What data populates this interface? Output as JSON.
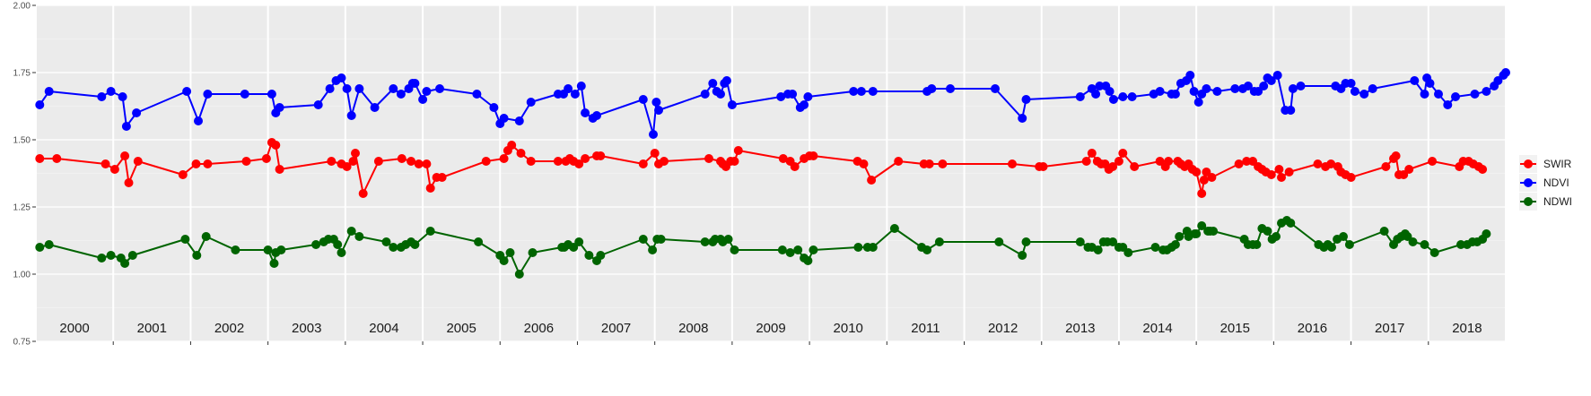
{
  "chart_data": {
    "type": "line",
    "ylim": [
      0.75,
      2.0
    ],
    "xlim": [
      2000.0,
      2019.0
    ],
    "y_ticks": [
      "0.75",
      "1.00",
      "1.25",
      "1.50",
      "1.75",
      "2.00"
    ],
    "year_labels": [
      "2000",
      "2001",
      "2002",
      "2003",
      "2004",
      "2005",
      "2006",
      "2007",
      "2008",
      "2009",
      "2010",
      "2011",
      "2012",
      "2013",
      "2014",
      "2015",
      "2016",
      "2017",
      "2018"
    ],
    "legend_position": "right",
    "background": "#ebebeb",
    "grid": true,
    "series": [
      {
        "name": "SWIR",
        "color": "#ff0000",
        "x": [
          2000.05,
          2000.27,
          2000.9,
          2001.02,
          2001.15,
          2001.2,
          2001.32,
          2001.9,
          2002.07,
          2002.22,
          2002.72,
          2002.98,
          2003.05,
          2003.1,
          2003.15,
          2003.82,
          2003.95,
          2004.02,
          2004.1,
          2004.13,
          2004.23,
          2004.43,
          2004.73,
          2004.85,
          2004.95,
          2005.05,
          2005.1,
          2005.18,
          2005.25,
          2005.82,
          2006.05,
          2006.1,
          2006.15,
          2006.27,
          2006.4,
          2006.75,
          2006.85,
          2006.9,
          2006.95,
          2007.02,
          2007.1,
          2007.25,
          2007.3,
          2007.85,
          2008.0,
          2008.05,
          2008.12,
          2008.7,
          2008.85,
          2008.88,
          2008.92,
          2008.98,
          2009.03,
          2009.08,
          2009.66,
          2009.75,
          2009.81,
          2009.93,
          2010.0,
          2010.05,
          2010.62,
          2010.7,
          2010.8,
          2011.15,
          2011.48,
          2011.55,
          2011.72,
          2012.62,
          2012.97,
          2013.02,
          2013.58,
          2013.65,
          2013.72,
          2013.77,
          2013.82,
          2013.87,
          2013.92,
          2014.0,
          2014.05,
          2014.2,
          2014.53,
          2014.6,
          2014.64,
          2014.76,
          2014.8,
          2014.85,
          2014.9,
          2014.95,
          2015.0,
          2015.07,
          2015.1,
          2015.13,
          2015.2,
          2015.55,
          2015.65,
          2015.73,
          2015.8,
          2015.85,
          2015.9,
          2015.97,
          2016.07,
          2016.1,
          2016.2,
          2016.57,
          2016.67,
          2016.74,
          2016.83,
          2016.87,
          2016.93,
          2017.0,
          2017.45,
          2017.55,
          2017.58,
          2017.62,
          2017.68,
          2017.75,
          2018.05,
          2018.4,
          2018.45,
          2018.52,
          2018.58,
          2018.65,
          2018.7
        ],
        "y": [
          1.43,
          1.43,
          1.41,
          1.39,
          1.44,
          1.34,
          1.42,
          1.37,
          1.41,
          1.41,
          1.42,
          1.43,
          1.49,
          1.48,
          1.39,
          1.42,
          1.41,
          1.4,
          1.42,
          1.45,
          1.3,
          1.42,
          1.43,
          1.42,
          1.41,
          1.41,
          1.32,
          1.36,
          1.36,
          1.42,
          1.43,
          1.46,
          1.48,
          1.45,
          1.42,
          1.42,
          1.42,
          1.43,
          1.42,
          1.41,
          1.43,
          1.44,
          1.44,
          1.41,
          1.45,
          1.41,
          1.42,
          1.43,
          1.42,
          1.41,
          1.4,
          1.42,
          1.42,
          1.46,
          1.43,
          1.42,
          1.4,
          1.43,
          1.44,
          1.44,
          1.42,
          1.41,
          1.35,
          1.42,
          1.41,
          1.41,
          1.41,
          1.41,
          1.4,
          1.4,
          1.42,
          1.45,
          1.42,
          1.41,
          1.41,
          1.39,
          1.4,
          1.42,
          1.45,
          1.4,
          1.42,
          1.4,
          1.42,
          1.42,
          1.41,
          1.4,
          1.41,
          1.39,
          1.38,
          1.3,
          1.35,
          1.38,
          1.36,
          1.41,
          1.42,
          1.42,
          1.4,
          1.39,
          1.38,
          1.37,
          1.39,
          1.36,
          1.38,
          1.41,
          1.4,
          1.41,
          1.4,
          1.38,
          1.37,
          1.36,
          1.4,
          1.43,
          1.44,
          1.37,
          1.37,
          1.39,
          1.42,
          1.4,
          1.42,
          1.42,
          1.41,
          1.4,
          1.39
        ]
      },
      {
        "name": "NDVI",
        "color": "#0000ff",
        "x": [
          2000.05,
          2000.17,
          2000.85,
          2000.97,
          2001.12,
          2001.17,
          2001.3,
          2001.95,
          2002.1,
          2002.22,
          2002.7,
          2003.05,
          2003.1,
          2003.15,
          2003.65,
          2003.8,
          2003.88,
          2003.95,
          2004.02,
          2004.08,
          2004.18,
          2004.38,
          2004.62,
          2004.72,
          2004.82,
          2004.87,
          2004.9,
          2005.0,
          2005.05,
          2005.22,
          2005.7,
          2005.92,
          2006.0,
          2006.05,
          2006.25,
          2006.4,
          2006.75,
          2006.82,
          2006.88,
          2006.97,
          2007.05,
          2007.1,
          2007.2,
          2007.25,
          2007.85,
          2007.98,
          2008.02,
          2008.05,
          2008.65,
          2008.75,
          2008.8,
          2008.85,
          2008.9,
          2008.93,
          2009.0,
          2009.63,
          2009.72,
          2009.78,
          2009.88,
          2009.93,
          2009.98,
          2010.57,
          2010.67,
          2010.82,
          2011.52,
          2011.58,
          2011.82,
          2012.4,
          2012.75,
          2012.8,
          2013.5,
          2013.65,
          2013.7,
          2013.75,
          2013.83,
          2013.88,
          2013.93,
          2014.05,
          2014.17,
          2014.45,
          2014.53,
          2014.68,
          2014.73,
          2014.8,
          2014.87,
          2014.92,
          2014.97,
          2015.03,
          2015.07,
          2015.13,
          2015.27,
          2015.5,
          2015.6,
          2015.67,
          2015.75,
          2015.8,
          2015.87,
          2015.92,
          2015.97,
          2016.05,
          2016.15,
          2016.22,
          2016.25,
          2016.35,
          2016.8,
          2016.87,
          2016.93,
          2017.0,
          2017.05,
          2017.17,
          2017.28,
          2017.82,
          2017.95,
          2017.98,
          2018.02,
          2018.13,
          2018.25,
          2018.35,
          2018.6,
          2018.75,
          2018.85,
          2018.9,
          2018.97,
          2019.0
        ],
        "y": [
          1.63,
          1.68,
          1.66,
          1.68,
          1.66,
          1.55,
          1.6,
          1.68,
          1.57,
          1.67,
          1.67,
          1.67,
          1.6,
          1.62,
          1.63,
          1.69,
          1.72,
          1.73,
          1.69,
          1.59,
          1.69,
          1.62,
          1.69,
          1.67,
          1.69,
          1.71,
          1.71,
          1.65,
          1.68,
          1.69,
          1.67,
          1.62,
          1.56,
          1.58,
          1.57,
          1.64,
          1.67,
          1.67,
          1.69,
          1.67,
          1.7,
          1.6,
          1.58,
          1.59,
          1.65,
          1.52,
          1.64,
          1.61,
          1.67,
          1.71,
          1.68,
          1.67,
          1.71,
          1.72,
          1.63,
          1.66,
          1.67,
          1.67,
          1.62,
          1.63,
          1.66,
          1.68,
          1.68,
          1.68,
          1.68,
          1.69,
          1.69,
          1.69,
          1.58,
          1.65,
          1.66,
          1.69,
          1.67,
          1.7,
          1.7,
          1.68,
          1.65,
          1.66,
          1.66,
          1.67,
          1.68,
          1.67,
          1.67,
          1.71,
          1.72,
          1.74,
          1.68,
          1.64,
          1.67,
          1.69,
          1.68,
          1.69,
          1.69,
          1.7,
          1.68,
          1.68,
          1.7,
          1.73,
          1.72,
          1.74,
          1.61,
          1.61,
          1.69,
          1.7,
          1.7,
          1.69,
          1.71,
          1.71,
          1.68,
          1.67,
          1.69,
          1.72,
          1.67,
          1.73,
          1.71,
          1.67,
          1.63,
          1.66,
          1.67,
          1.68,
          1.7,
          1.72,
          1.74,
          1.75
        ]
      },
      {
        "name": "NDWI",
        "color": "#006400",
        "x": [
          2000.05,
          2000.17,
          2000.85,
          2000.97,
          2001.1,
          2001.15,
          2001.25,
          2001.93,
          2002.08,
          2002.2,
          2002.58,
          2003.0,
          2003.08,
          2003.1,
          2003.17,
          2003.62,
          2003.72,
          2003.78,
          2003.85,
          2003.9,
          2003.95,
          2004.08,
          2004.18,
          2004.53,
          2004.62,
          2004.72,
          2004.78,
          2004.85,
          2004.9,
          2005.1,
          2005.72,
          2006.0,
          2006.05,
          2006.13,
          2006.25,
          2006.42,
          2006.8,
          2006.83,
          2006.88,
          2006.95,
          2007.02,
          2007.15,
          2007.25,
          2007.3,
          2007.85,
          2007.97,
          2008.03,
          2008.08,
          2008.65,
          2008.75,
          2008.78,
          2008.85,
          2008.88,
          2008.95,
          2009.03,
          2009.65,
          2009.75,
          2009.85,
          2009.93,
          2009.98,
          2010.05,
          2010.63,
          2010.75,
          2010.82,
          2011.1,
          2011.45,
          2011.52,
          2011.68,
          2012.45,
          2012.75,
          2012.8,
          2013.5,
          2013.6,
          2013.65,
          2013.73,
          2013.8,
          2013.85,
          2013.92,
          2014.0,
          2014.05,
          2014.12,
          2014.47,
          2014.57,
          2014.62,
          2014.68,
          2014.73,
          2014.78,
          2014.88,
          2014.9,
          2014.98,
          2015.0,
          2015.07,
          2015.15,
          2015.18,
          2015.22,
          2015.62,
          2015.67,
          2015.73,
          2015.78,
          2015.85,
          2015.92,
          2015.98,
          2016.03,
          2016.1,
          2016.17,
          2016.22,
          2016.58,
          2016.65,
          2016.7,
          2016.75,
          2016.82,
          2016.9,
          2016.98,
          2017.43,
          2017.55,
          2017.6,
          2017.65,
          2017.7,
          2017.73,
          2017.8,
          2017.95,
          2018.08,
          2018.42,
          2018.5,
          2018.57,
          2018.63,
          2018.7,
          2018.75
        ],
        "y": [
          1.1,
          1.11,
          1.06,
          1.07,
          1.06,
          1.04,
          1.07,
          1.13,
          1.07,
          1.14,
          1.09,
          1.09,
          1.04,
          1.08,
          1.09,
          1.11,
          1.12,
          1.13,
          1.13,
          1.11,
          1.08,
          1.16,
          1.14,
          1.12,
          1.1,
          1.1,
          1.11,
          1.12,
          1.11,
          1.16,
          1.12,
          1.07,
          1.05,
          1.08,
          1.0,
          1.08,
          1.1,
          1.1,
          1.11,
          1.1,
          1.12,
          1.07,
          1.05,
          1.07,
          1.13,
          1.09,
          1.13,
          1.13,
          1.12,
          1.12,
          1.13,
          1.13,
          1.12,
          1.13,
          1.09,
          1.09,
          1.08,
          1.09,
          1.06,
          1.05,
          1.09,
          1.1,
          1.1,
          1.1,
          1.17,
          1.1,
          1.09,
          1.12,
          1.12,
          1.07,
          1.12,
          1.12,
          1.1,
          1.1,
          1.09,
          1.12,
          1.12,
          1.12,
          1.1,
          1.1,
          1.08,
          1.1,
          1.09,
          1.09,
          1.1,
          1.11,
          1.14,
          1.16,
          1.14,
          1.15,
          1.15,
          1.18,
          1.16,
          1.16,
          1.16,
          1.13,
          1.11,
          1.11,
          1.11,
          1.17,
          1.16,
          1.13,
          1.14,
          1.19,
          1.2,
          1.19,
          1.11,
          1.1,
          1.11,
          1.1,
          1.13,
          1.14,
          1.11,
          1.16,
          1.11,
          1.13,
          1.14,
          1.15,
          1.14,
          1.12,
          1.11,
          1.08,
          1.11,
          1.11,
          1.12,
          1.12,
          1.13,
          1.15
        ]
      }
    ]
  }
}
